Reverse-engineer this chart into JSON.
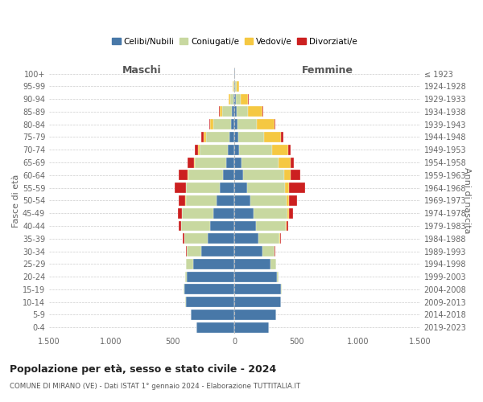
{
  "age_groups": [
    "0-4",
    "5-9",
    "10-14",
    "15-19",
    "20-24",
    "25-29",
    "30-34",
    "35-39",
    "40-44",
    "45-49",
    "50-54",
    "55-59",
    "60-64",
    "65-69",
    "70-74",
    "75-79",
    "80-84",
    "85-89",
    "90-94",
    "95-99",
    "100+"
  ],
  "birth_years": [
    "2019-2023",
    "2014-2018",
    "2009-2013",
    "2004-2008",
    "1999-2003",
    "1994-1998",
    "1989-1993",
    "1984-1988",
    "1979-1983",
    "1974-1978",
    "1969-1973",
    "1964-1968",
    "1959-1963",
    "1954-1958",
    "1949-1953",
    "1944-1948",
    "1939-1943",
    "1934-1938",
    "1929-1933",
    "1924-1928",
    "≤ 1923"
  ],
  "maschi": {
    "celibi": [
      310,
      355,
      395,
      405,
      385,
      335,
      270,
      220,
      195,
      170,
      145,
      120,
      95,
      70,
      55,
      40,
      30,
      20,
      8,
      4,
      2
    ],
    "coniugati": [
      1,
      2,
      3,
      5,
      15,
      55,
      115,
      185,
      235,
      255,
      250,
      270,
      280,
      250,
      230,
      190,
      140,
      80,
      30,
      8,
      2
    ],
    "vedovi": [
      0,
      0,
      0,
      0,
      0,
      1,
      0,
      1,
      2,
      2,
      3,
      3,
      5,
      8,
      12,
      20,
      25,
      20,
      8,
      3,
      1
    ],
    "divorziati": [
      0,
      0,
      0,
      0,
      1,
      2,
      5,
      10,
      18,
      30,
      55,
      90,
      70,
      55,
      22,
      18,
      12,
      5,
      2,
      0,
      0
    ]
  },
  "femmine": {
    "nubili": [
      275,
      335,
      375,
      375,
      345,
      290,
      225,
      195,
      175,
      155,
      130,
      100,
      70,
      55,
      38,
      28,
      22,
      18,
      10,
      5,
      3
    ],
    "coniugate": [
      1,
      1,
      2,
      4,
      10,
      45,
      95,
      170,
      240,
      275,
      290,
      310,
      330,
      300,
      265,
      210,
      155,
      90,
      40,
      10,
      2
    ],
    "vedove": [
      0,
      0,
      0,
      0,
      0,
      1,
      2,
      3,
      5,
      10,
      18,
      28,
      55,
      100,
      130,
      140,
      145,
      120,
      60,
      20,
      2
    ],
    "divorziate": [
      0,
      0,
      0,
      0,
      1,
      2,
      5,
      10,
      15,
      30,
      65,
      130,
      75,
      25,
      20,
      15,
      10,
      5,
      3,
      0,
      0
    ]
  },
  "colors": {
    "celibi": "#4878a8",
    "coniugati": "#c8d8a0",
    "vedovi": "#f5c842",
    "divorziati": "#cc2020"
  },
  "title": "Popolazione per età, sesso e stato civile - 2024",
  "subtitle": "COMUNE DI MIRANO (VE) - Dati ISTAT 1° gennaio 2024 - Elaborazione TUTTITALIA.IT",
  "ylabel_left": "Fasce di età",
  "ylabel_right": "Anni di nascita",
  "xlabel_left": "Maschi",
  "xlabel_right": "Femmine",
  "xlim": 1500,
  "xticks": [
    -1500,
    -1000,
    -500,
    0,
    500,
    1000,
    1500
  ],
  "xticklabels": [
    "1.500",
    "1.000",
    "500",
    "0",
    "500",
    "1.000",
    "1.500"
  ],
  "bg_color": "#ffffff",
  "grid_color": "#cccccc",
  "legend_labels": [
    "Celibi/Nubili",
    "Coniugati/e",
    "Vedovi/e",
    "Divorziati/e"
  ]
}
